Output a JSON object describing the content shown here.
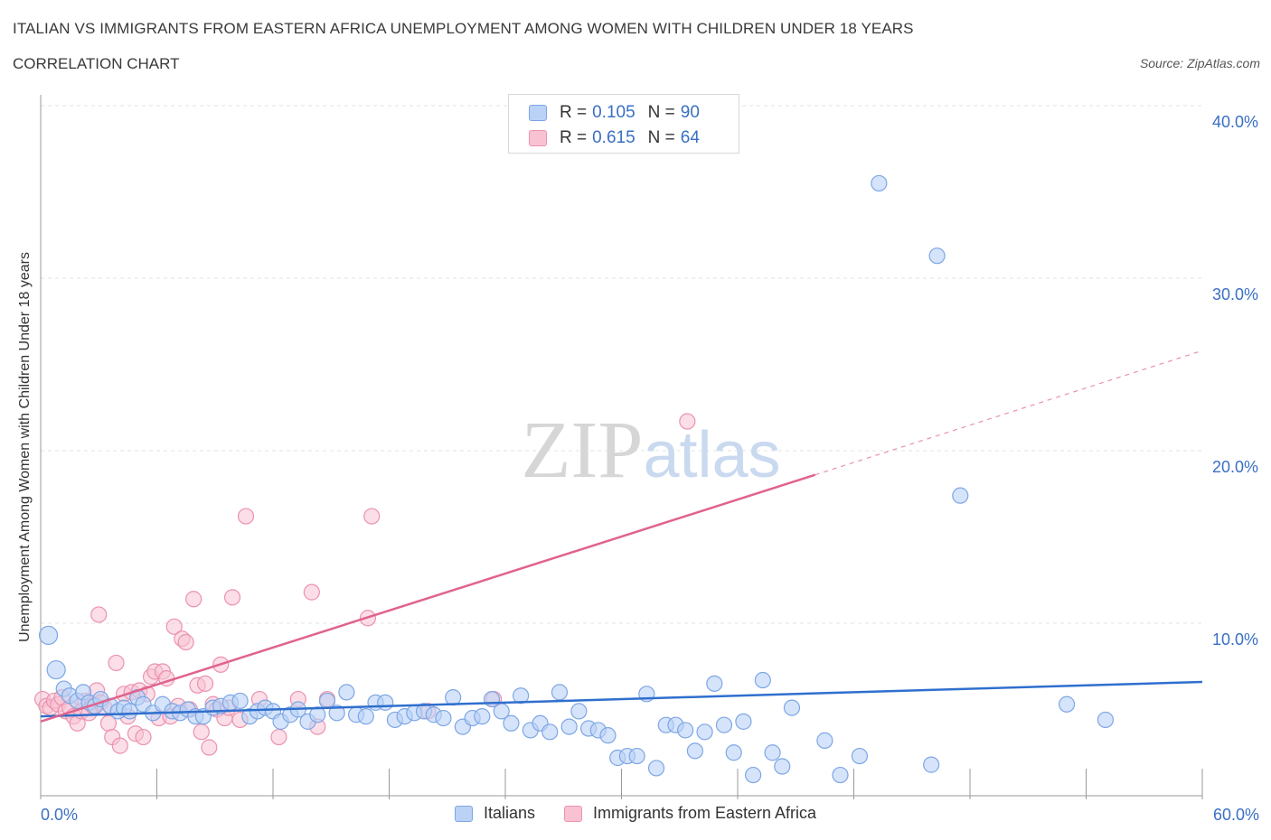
{
  "header": {
    "title": "ITALIAN VS IMMIGRANTS FROM EASTERN AFRICA UNEMPLOYMENT AMONG WOMEN WITH CHILDREN UNDER 18 YEARS",
    "subtitle": "CORRELATION CHART",
    "source": "Source: ZipAtlas.com"
  },
  "watermark": "ZIPatlas",
  "legend_top": {
    "rows": [
      {
        "r_label": "R = ",
        "r_value": "0.105",
        "n_label": "N = ",
        "n_value": "90"
      },
      {
        "r_label": "R = ",
        "r_value": "0.615",
        "n_label": "N = ",
        "n_value": "64"
      }
    ]
  },
  "colors": {
    "italians_fill": "#b9d2f6",
    "italians_stroke": "#7ea6e4",
    "italians_line": "#2f6fce",
    "eafrica_fill": "#f8c2d3",
    "eafrica_stroke": "#ec92ae",
    "eafrica_line": "#e0638d",
    "tick_label": "#3a6fc4",
    "grid": "#e3e3e3"
  },
  "chart_data": {
    "type": "scatter",
    "title": "ITALIAN VS IMMIGRANTS FROM EASTERN AFRICA UNEMPLOYMENT AMONG WOMEN WITH CHILDREN UNDER 18 YEARS",
    "xlabel": "",
    "ylabel": "Unemployment Among Women with Children Under 18 years",
    "xlim": [
      0,
      60
    ],
    "ylim": [
      0,
      40
    ],
    "x_tick_labels": [
      "0.0%",
      "60.0%"
    ],
    "y_ticks": [
      10,
      20,
      30,
      40
    ],
    "y_tick_labels": [
      "10.0%",
      "20.0%",
      "30.0%",
      "40.0%"
    ],
    "grid": true,
    "legend_position": "bottom",
    "series": [
      {
        "name": "Italians",
        "R": 0.105,
        "N": 90,
        "trend": {
          "x": [
            0,
            60
          ],
          "y": [
            4.6,
            6.6
          ],
          "style": "solid"
        },
        "points": [
          [
            0.4,
            9.3
          ],
          [
            0.8,
            7.3
          ],
          [
            1.2,
            6.2
          ],
          [
            1.5,
            5.8
          ],
          [
            1.9,
            5.5
          ],
          [
            2.2,
            6.0
          ],
          [
            2.5,
            5.4
          ],
          [
            2.8,
            5.2
          ],
          [
            3.1,
            5.6
          ],
          [
            3.6,
            5.2
          ],
          [
            4.0,
            4.9
          ],
          [
            4.3,
            5.1
          ],
          [
            4.6,
            4.9
          ],
          [
            5.0,
            5.7
          ],
          [
            5.3,
            5.3
          ],
          [
            5.8,
            4.8
          ],
          [
            6.3,
            5.3
          ],
          [
            6.8,
            4.9
          ],
          [
            7.2,
            4.8
          ],
          [
            7.6,
            5.0
          ],
          [
            8.0,
            4.6
          ],
          [
            8.4,
            4.6
          ],
          [
            8.9,
            5.1
          ],
          [
            9.3,
            5.2
          ],
          [
            9.8,
            5.4
          ],
          [
            10.3,
            5.5
          ],
          [
            10.8,
            4.6
          ],
          [
            11.2,
            4.9
          ],
          [
            11.6,
            5.1
          ],
          [
            12.0,
            4.9
          ],
          [
            12.4,
            4.3
          ],
          [
            12.9,
            4.7
          ],
          [
            13.3,
            5.0
          ],
          [
            13.8,
            4.3
          ],
          [
            14.3,
            4.7
          ],
          [
            14.8,
            5.5
          ],
          [
            15.3,
            4.8
          ],
          [
            15.8,
            6.0
          ],
          [
            16.3,
            4.7
          ],
          [
            16.8,
            4.6
          ],
          [
            17.3,
            5.4
          ],
          [
            17.8,
            5.4
          ],
          [
            18.3,
            4.4
          ],
          [
            18.8,
            4.6
          ],
          [
            19.3,
            4.8
          ],
          [
            19.8,
            4.9
          ],
          [
            20.3,
            4.7
          ],
          [
            20.8,
            4.5
          ],
          [
            21.3,
            5.7
          ],
          [
            21.8,
            4.0
          ],
          [
            22.3,
            4.5
          ],
          [
            22.8,
            4.6
          ],
          [
            23.3,
            5.6
          ],
          [
            23.8,
            4.9
          ],
          [
            24.3,
            4.2
          ],
          [
            24.8,
            5.8
          ],
          [
            25.3,
            3.8
          ],
          [
            25.8,
            4.2
          ],
          [
            26.3,
            3.7
          ],
          [
            26.8,
            6.0
          ],
          [
            27.3,
            4.0
          ],
          [
            27.8,
            4.9
          ],
          [
            28.3,
            3.9
          ],
          [
            28.8,
            3.8
          ],
          [
            29.3,
            3.5
          ],
          [
            29.8,
            2.2
          ],
          [
            30.3,
            2.3
          ],
          [
            30.8,
            2.3
          ],
          [
            31.3,
            5.9
          ],
          [
            31.8,
            1.6
          ],
          [
            32.3,
            4.1
          ],
          [
            32.8,
            4.1
          ],
          [
            33.3,
            3.8
          ],
          [
            33.8,
            2.6
          ],
          [
            34.3,
            3.7
          ],
          [
            34.8,
            6.5
          ],
          [
            35.3,
            4.1
          ],
          [
            35.8,
            2.5
          ],
          [
            36.3,
            4.3
          ],
          [
            36.8,
            1.2
          ],
          [
            37.3,
            6.7
          ],
          [
            37.8,
            2.5
          ],
          [
            38.3,
            1.7
          ],
          [
            38.8,
            5.1
          ],
          [
            40.5,
            3.2
          ],
          [
            41.3,
            1.2
          ],
          [
            42.3,
            2.3
          ],
          [
            43.3,
            35.5
          ],
          [
            46.0,
            1.8
          ],
          [
            46.3,
            31.3
          ],
          [
            47.5,
            17.4
          ],
          [
            53.0,
            5.3
          ],
          [
            55.0,
            4.4
          ]
        ]
      },
      {
        "name": "Immigrants from Eastern Africa",
        "R": 0.615,
        "N": 64,
        "trend": {
          "x": [
            0,
            40
          ],
          "y": [
            4.3,
            18.6
          ],
          "style": "solid",
          "dashed_extension_to": [
            60,
            25.8
          ]
        },
        "points": [
          [
            0.1,
            5.6
          ],
          [
            0.3,
            5.2
          ],
          [
            0.5,
            5.1
          ],
          [
            0.7,
            5.5
          ],
          [
            0.9,
            5.3
          ],
          [
            1.1,
            5.7
          ],
          [
            1.3,
            4.9
          ],
          [
            1.5,
            5.1
          ],
          [
            1.7,
            4.6
          ],
          [
            1.9,
            4.2
          ],
          [
            2.1,
            4.9
          ],
          [
            2.3,
            5.5
          ],
          [
            2.5,
            4.8
          ],
          [
            2.7,
            5.2
          ],
          [
            2.9,
            6.1
          ],
          [
            3.1,
            5.4
          ],
          [
            3.3,
            5.1
          ],
          [
            3.5,
            4.2
          ],
          [
            3.7,
            3.4
          ],
          [
            3.9,
            7.7
          ],
          [
            4.1,
            2.9
          ],
          [
            4.3,
            5.9
          ],
          [
            4.5,
            4.6
          ],
          [
            4.7,
            6.0
          ],
          [
            4.9,
            3.6
          ],
          [
            5.1,
            6.1
          ],
          [
            5.3,
            3.4
          ],
          [
            5.5,
            5.9
          ],
          [
            5.7,
            6.9
          ],
          [
            5.9,
            7.2
          ],
          [
            6.1,
            4.5
          ],
          [
            6.3,
            7.2
          ],
          [
            6.5,
            6.8
          ],
          [
            6.7,
            4.6
          ],
          [
            6.9,
            9.8
          ],
          [
            7.1,
            5.2
          ],
          [
            7.3,
            9.1
          ],
          [
            7.5,
            8.9
          ],
          [
            7.7,
            5.0
          ],
          [
            7.9,
            11.4
          ],
          [
            8.1,
            6.4
          ],
          [
            8.3,
            3.7
          ],
          [
            8.5,
            6.5
          ],
          [
            8.7,
            2.8
          ],
          [
            8.9,
            5.3
          ],
          [
            9.1,
            5.0
          ],
          [
            9.3,
            7.6
          ],
          [
            9.5,
            4.5
          ],
          [
            9.7,
            5.1
          ],
          [
            9.9,
            11.5
          ],
          [
            10.3,
            4.4
          ],
          [
            10.6,
            16.2
          ],
          [
            11.3,
            5.6
          ],
          [
            12.3,
            3.4
          ],
          [
            13.3,
            5.6
          ],
          [
            14.0,
            11.8
          ],
          [
            14.3,
            4.0
          ],
          [
            14.8,
            5.6
          ],
          [
            16.9,
            10.3
          ],
          [
            17.1,
            16.2
          ],
          [
            20.0,
            4.9
          ],
          [
            23.4,
            5.6
          ],
          [
            33.4,
            21.7
          ],
          [
            3.0,
            10.5
          ]
        ]
      }
    ]
  }
}
